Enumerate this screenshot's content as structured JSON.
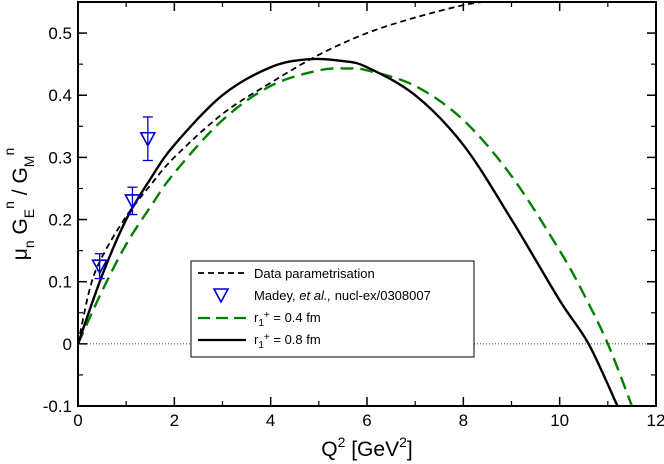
{
  "chart_data": {
    "type": "line",
    "title": "",
    "xlabel": "Q^2 [GeV^2]",
    "ylabel": "μn GEn / GMn",
    "xlim": [
      0,
      12
    ],
    "ylim": [
      -0.1,
      0.55
    ],
    "x_ticks": [
      "0",
      "2",
      "4",
      "6",
      "8",
      "10",
      "12"
    ],
    "y_ticks": [
      "-0.1",
      "0",
      "0.1",
      "0.2",
      "0.3",
      "0.4",
      "0.5"
    ],
    "x_tick_values": [
      0,
      2,
      4,
      6,
      8,
      10,
      12
    ],
    "y_tick_values": [
      -0.1,
      0,
      0.1,
      0.2,
      0.3,
      0.4,
      0.5
    ],
    "reference_line": {
      "y": 0,
      "style": "dotted"
    },
    "series": [
      {
        "name": "Data parametrisation",
        "style": "short-dash",
        "color": "#000000",
        "x": [
          0.0,
          0.25,
          0.5,
          1.0,
          1.5,
          2.0,
          3.0,
          4.0,
          5.0,
          6.0,
          7.0,
          8.0,
          8.4
        ],
        "y": [
          0.0,
          0.09,
          0.14,
          0.205,
          0.255,
          0.3,
          0.37,
          0.42,
          0.465,
          0.5,
          0.525,
          0.545,
          0.55
        ]
      },
      {
        "name": "r1+ = 0.4 fm",
        "style": "long-dash",
        "color": "#008000",
        "x": [
          0.0,
          0.5,
          1.0,
          1.5,
          2.0,
          3.0,
          4.0,
          5.0,
          5.6,
          6.0,
          7.0,
          8.0,
          9.0,
          10.0,
          10.5,
          11.0,
          11.5
        ],
        "y": [
          0.0,
          0.085,
          0.16,
          0.22,
          0.275,
          0.36,
          0.415,
          0.44,
          0.443,
          0.44,
          0.415,
          0.36,
          0.27,
          0.15,
          0.08,
          0.0,
          -0.1
        ]
      },
      {
        "name": "r1+ = 0.8 fm",
        "style": "solid",
        "color": "#000000",
        "x": [
          0.0,
          0.5,
          1.0,
          1.5,
          2.0,
          3.0,
          4.0,
          4.8,
          5.5,
          6.0,
          7.0,
          8.0,
          9.0,
          10.0,
          10.6,
          11.2
        ],
        "y": [
          0.0,
          0.11,
          0.2,
          0.265,
          0.32,
          0.4,
          0.445,
          0.458,
          0.455,
          0.445,
          0.4,
          0.32,
          0.2,
          0.07,
          0.0,
          -0.1
        ]
      }
    ],
    "data_points": {
      "name": "Madey, et al., nucl-ex/0308007",
      "marker": "triangle-down-open",
      "color": "#0000cc",
      "points": [
        {
          "x": 0.45,
          "y": 0.125,
          "err": 0.02
        },
        {
          "x": 1.13,
          "y": 0.23,
          "err": 0.022
        },
        {
          "x": 1.45,
          "y": 0.33,
          "err": 0.035
        }
      ]
    },
    "legend": {
      "position": "bottom-right",
      "entries": [
        {
          "text": "Data parametrisation"
        },
        {
          "text_plain": "Madey, ",
          "text_italic": "et al.,",
          "text_rest": " nucl-ex/0308007"
        },
        {
          "text_main": "r",
          "text_sub": "1",
          "text_sup": "+",
          "text_rest": " = 0.4 fm"
        },
        {
          "text_main": "r",
          "text_sub": "1",
          "text_sup": "+",
          "text_rest": " = 0.8 fm"
        }
      ]
    }
  },
  "axis_title_parts": {
    "x": {
      "main": "Q",
      "sup": "2",
      "mid": " [GeV",
      "sup2": "2",
      "end": "]"
    },
    "y": {
      "mu": "μ",
      "mu_sub": "n",
      "g1": " G",
      "g1_sub": "E",
      "g1_sup": "n",
      "slash": " / G",
      "g2_sub": "M",
      "g2_sup": "n"
    }
  }
}
